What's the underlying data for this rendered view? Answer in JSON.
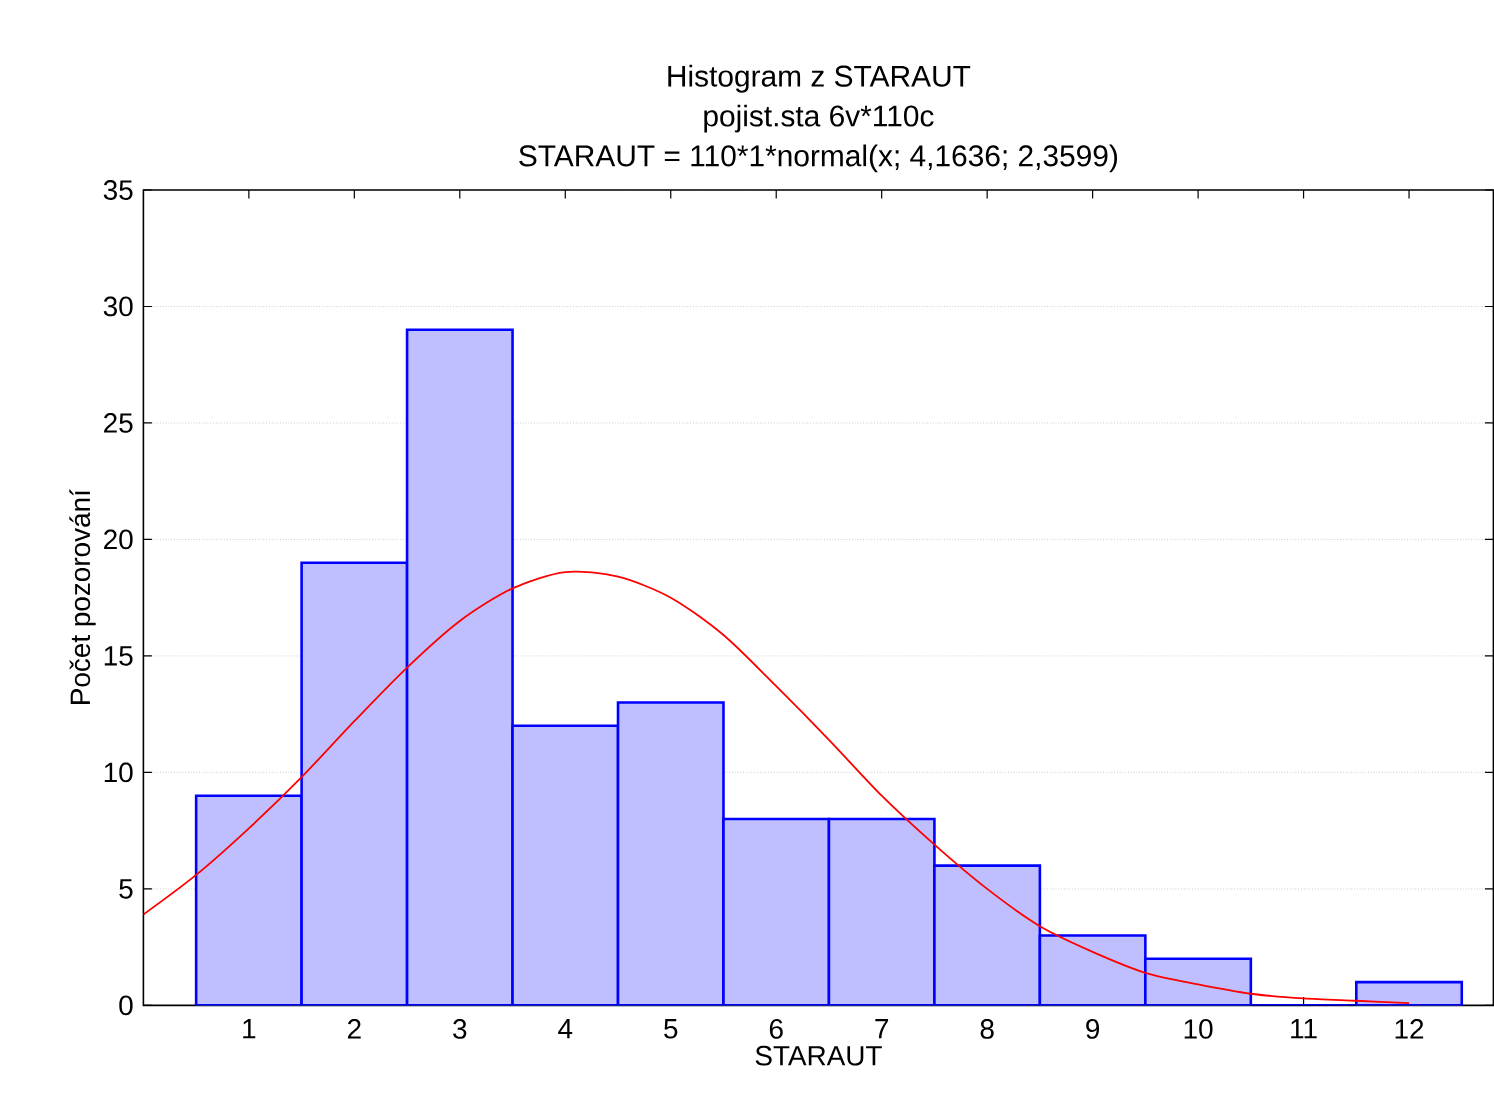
{
  "chart_data": {
    "type": "histogram",
    "title": "Histogram z STARAUT",
    "subtitle": "pojist.sta 6v*110c",
    "annotations": [
      "STARAUT = 110*1*normal(x; 4,1636; 2,3599)"
    ],
    "xlabel": "STARAUT",
    "ylabel": "Počet pozorování",
    "bins": [
      0.5,
      1.5,
      2.5,
      3.5,
      4.5,
      5.5,
      6.5,
      7.5,
      8.5,
      9.5,
      10.5,
      11.5,
      12.5
    ],
    "values": [
      9,
      19,
      29,
      12,
      13,
      8,
      8,
      6,
      3,
      2,
      0,
      1
    ],
    "color": "#bfbfff",
    "series": [
      {
        "type": "line",
        "color": "#ff0000",
        "x": [
          0,
          0.5,
          1,
          1.5,
          2,
          2.5,
          3,
          3.5,
          4,
          4.5,
          5,
          5.5,
          6,
          6.5,
          7,
          7.5,
          8,
          8.5,
          9,
          9.5,
          10,
          10.5,
          11,
          11.5,
          12
        ],
        "values": [
          3.9,
          5.6,
          7.6,
          9.8,
          12.2,
          14.5,
          16.5,
          17.9,
          18.6,
          18.4,
          17.5,
          15.9,
          13.7,
          11.4,
          9.0,
          6.9,
          5.0,
          3.4,
          2.3,
          1.4,
          0.9,
          0.5,
          0.3,
          0.2,
          0.1
        ]
      }
    ],
    "xlim": [
      0,
      12.8
    ],
    "xticks": [
      1,
      2,
      3,
      4,
      5,
      6,
      7,
      8,
      9,
      10,
      11,
      12
    ],
    "ylim": [
      0,
      35
    ],
    "yticks": [
      0,
      5,
      10,
      15,
      20,
      25,
      30,
      35
    ],
    "grid": "y"
  }
}
